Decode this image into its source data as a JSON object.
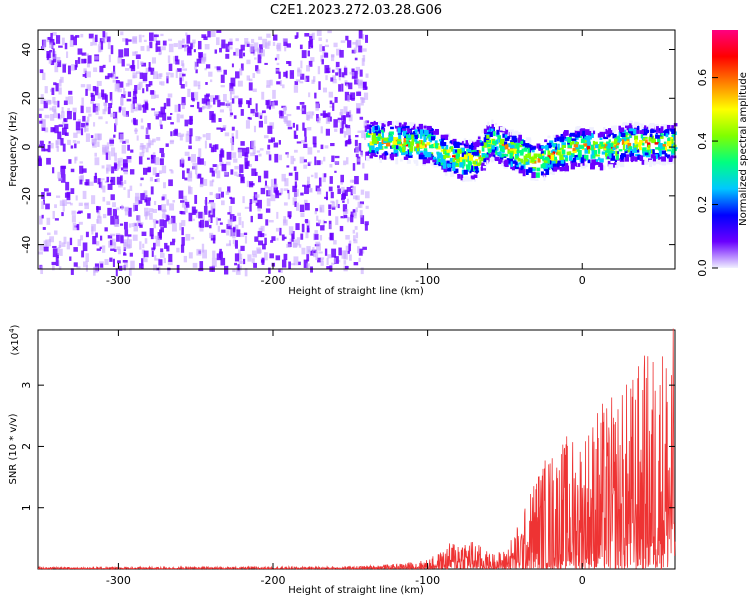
{
  "title": "C2E1.2023.272.03.28.G06",
  "chart_data": [
    {
      "type": "heatmap",
      "name": "spectrogram",
      "xlabel": "Height of straight line (km)",
      "ylabel": "Frequency (Hz)",
      "xlim": [
        -352,
        60
      ],
      "ylim": [
        -50,
        48
      ],
      "xticks": [
        -300,
        -200,
        -100,
        0
      ],
      "xtick_labels": [
        "-300",
        "-200",
        "-100",
        "0"
      ],
      "yticks": [
        -40,
        -20,
        0,
        20,
        40
      ],
      "ytick_labels": [
        "-40",
        "-20",
        "0",
        "20",
        "40"
      ],
      "colorbar": {
        "label": "Normalized spectral amplitude",
        "range": [
          0.0,
          0.75
        ],
        "ticks": [
          0.0,
          0.2,
          0.4,
          0.6
        ],
        "tick_labels": [
          "0.0",
          "0.2",
          "0.4",
          "0.6"
        ],
        "colors": [
          "#f0f0ff",
          "#6a00ff",
          "#0000ff",
          "#00c8ff",
          "#00ff80",
          "#80ff00",
          "#ffff00",
          "#ff8000",
          "#ff0000",
          "#ff0080"
        ]
      },
      "noise_region_x": [
        -352,
        -140
      ],
      "signal_trace": {
        "x": [
          -140,
          -120,
          -100,
          -90,
          -80,
          -70,
          -60,
          -50,
          -40,
          -30,
          -20,
          -10,
          0,
          10,
          20,
          30,
          40,
          50,
          60
        ],
        "y": [
          4,
          3,
          2,
          -2,
          -4,
          -5,
          4,
          0,
          -2,
          -6,
          -2,
          0,
          1,
          0,
          1,
          3,
          2,
          2,
          3
        ]
      }
    },
    {
      "type": "line",
      "name": "snr",
      "xlabel": "Height of straight line (km)",
      "ylabel": "SNR (10 * v/v)",
      "y_multiplier_label": "(x10",
      "y_multiplier_exp": "4",
      "y_multiplier_close": ")",
      "xlim": [
        -352,
        60
      ],
      "ylim": [
        0,
        3.9
      ],
      "xticks": [
        -300,
        -200,
        -100,
        0
      ],
      "xtick_labels": [
        "-300",
        "-200",
        "-100",
        "0"
      ],
      "yticks": [
        1,
        2,
        3
      ],
      "ytick_labels": [
        "1",
        "2",
        "3"
      ],
      "color": "#ee3333",
      "envelope": {
        "x": [
          -352,
          -150,
          -120,
          -100,
          -90,
          -80,
          -70,
          -60,
          -50,
          -40,
          -35,
          -30,
          -20,
          -10,
          0,
          10,
          20,
          30,
          40,
          50,
          55,
          60
        ],
        "y": [
          0.03,
          0.04,
          0.08,
          0.15,
          0.3,
          0.55,
          0.45,
          0.25,
          0.3,
          0.8,
          1.1,
          1.6,
          1.9,
          2.1,
          2.2,
          2.6,
          2.7,
          3.0,
          3.4,
          3.6,
          3.8,
          3.8
        ]
      }
    }
  ]
}
